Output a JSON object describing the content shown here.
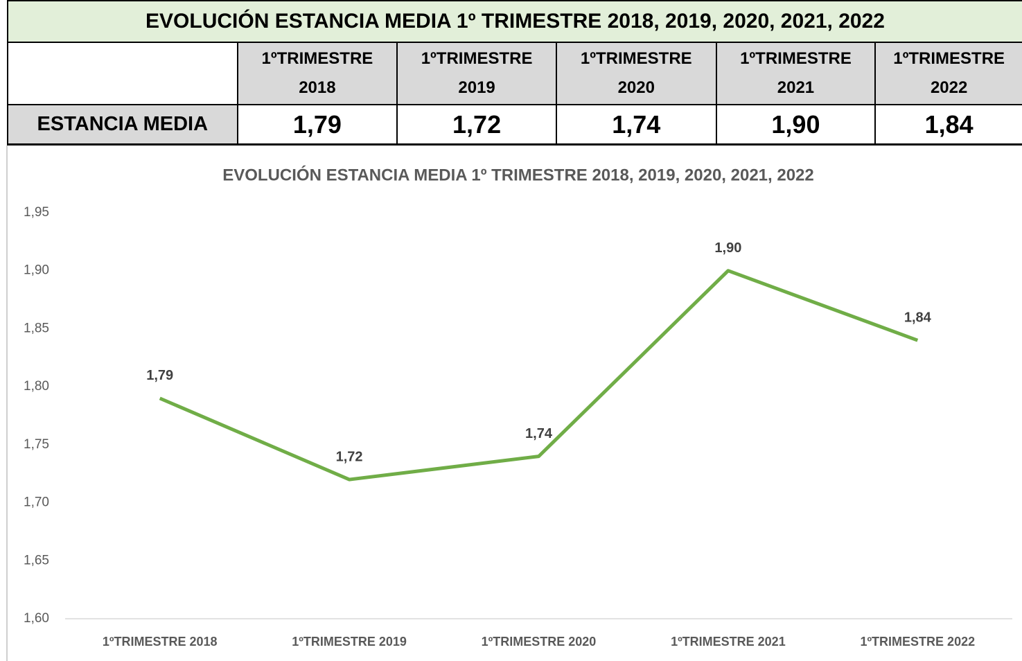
{
  "table": {
    "title": "EVOLUCIÓN ESTANCIA MEDIA 1º TRIMESTRE 2018, 2019, 2020, 2021, 2022",
    "header": [
      [
        "1ºTRIMESTRE",
        "2018"
      ],
      [
        "1ºTRIMESTRE",
        "2019"
      ],
      [
        "1ºTRIMESTRE",
        "2020"
      ],
      [
        "1ºTRIMESTRE",
        "2021"
      ],
      [
        "1ºTRIMESTRE",
        "2022"
      ]
    ],
    "row_label": "ESTANCIA MEDIA",
    "row": [
      "1,79",
      "1,72",
      "1,74",
      "1,90",
      "1,84"
    ]
  },
  "chart_data": {
    "type": "line",
    "title": "EVOLUCIÓN ESTANCIA MEDIA 1º TRIMESTRE 2018, 2019, 2020, 2021, 2022",
    "categories": [
      "1ºTRIMESTRE 2018",
      "1ºTRIMESTRE 2019",
      "1ºTRIMESTRE 2020",
      "1ºTRIMESTRE 2021",
      "1ºTRIMESTRE 2022"
    ],
    "values": [
      1.79,
      1.72,
      1.74,
      1.9,
      1.84
    ],
    "value_labels": [
      "1,79",
      "1,72",
      "1,74",
      "1,90",
      "1,84"
    ],
    "color": "#70ad47",
    "ylim": [
      1.6,
      1.95
    ],
    "yticks": [
      {
        "value": 1.6,
        "label": "1,60"
      },
      {
        "value": 1.65,
        "label": "1,65"
      },
      {
        "value": 1.7,
        "label": "1,70"
      },
      {
        "value": 1.75,
        "label": "1,75"
      },
      {
        "value": 1.8,
        "label": "1,80"
      },
      {
        "value": 1.85,
        "label": "1,85"
      },
      {
        "value": 1.9,
        "label": "1,90"
      },
      {
        "value": 1.95,
        "label": "1,95"
      }
    ],
    "grid": false
  }
}
